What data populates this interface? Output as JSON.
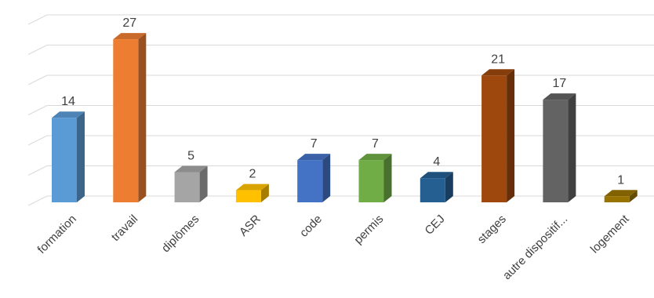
{
  "chart_data": {
    "type": "bar",
    "style": "3d-column",
    "categories": [
      "formation",
      "travail",
      "diplômes",
      "ASR",
      "code",
      "permis",
      "CEJ",
      "stages",
      "autre dispositif...",
      "logement"
    ],
    "series": [
      {
        "values": [
          14,
          27,
          5,
          2,
          7,
          7,
          4,
          21,
          17,
          1
        ]
      }
    ],
    "ylim": [
      0,
      30
    ],
    "gridlines": true,
    "legend": "none",
    "colors": [
      "#5B9BD5",
      "#ED7D31",
      "#A5A5A5",
      "#FFC000",
      "#4472C4",
      "#70AD47",
      "#255E91",
      "#9E480E",
      "#636363",
      "#997300"
    ]
  }
}
